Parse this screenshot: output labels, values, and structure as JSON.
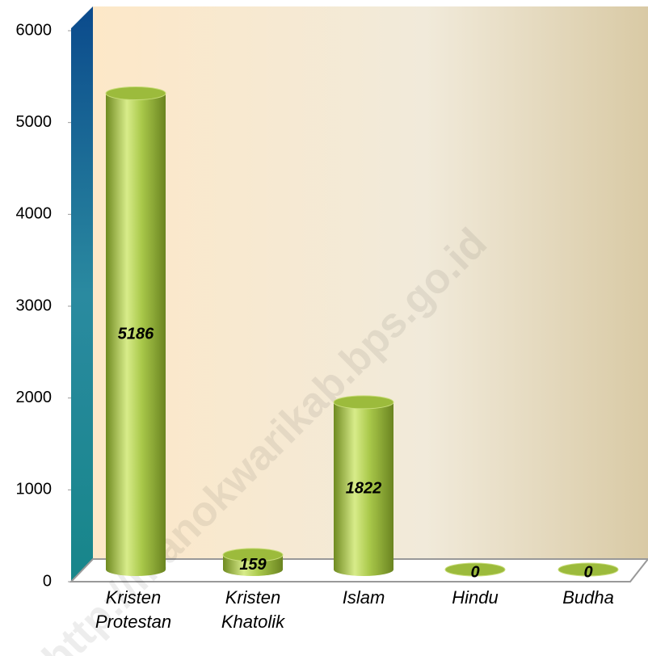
{
  "chart_data": {
    "type": "bar3d",
    "categories": [
      "Kristen Protestan",
      "Kristen Khatolik",
      "Islam",
      "Hindu",
      "Budha"
    ],
    "values": [
      5186,
      159,
      1822,
      0,
      0
    ],
    "color": "#9cbb3c",
    "ylim": [
      0,
      6000
    ],
    "yticks": [
      0,
      1000,
      2000,
      3000,
      4000,
      5000,
      6000
    ],
    "watermark": "http://manokwarikab.bps.go.id"
  }
}
